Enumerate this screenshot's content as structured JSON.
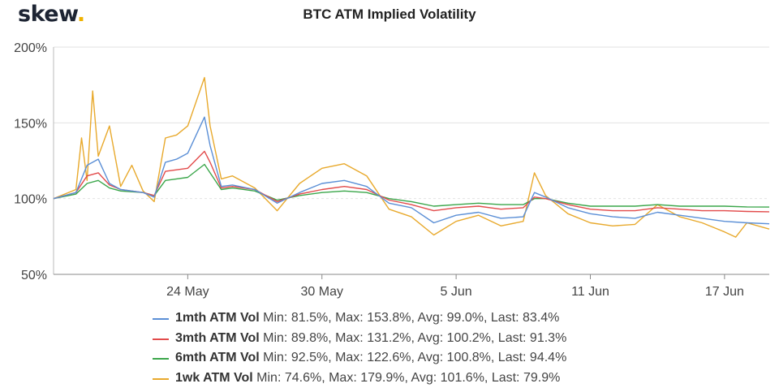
{
  "brand": {
    "name": "skew",
    "dot": "."
  },
  "chart_data": {
    "type": "line",
    "title": "BTC ATM Implied Volatility",
    "xlabel": "",
    "ylabel": "",
    "ylim": [
      50,
      200
    ],
    "yticks": [
      50,
      100,
      150,
      200
    ],
    "ytick_labels": [
      "50%",
      "100%",
      "150%",
      "200%"
    ],
    "xlim": [
      "2020-05-18",
      "2020-06-19"
    ],
    "xticks": [
      "2020-05-24",
      "2020-05-30",
      "2020-06-05",
      "2020-06-11",
      "2020-06-17"
    ],
    "xtick_labels": [
      "24 May",
      "30 May",
      "5 Jun",
      "11 Jun",
      "17 Jun"
    ],
    "grid": true,
    "legend_placement": "bottom",
    "series": [
      {
        "name": "1mth ATM Vol",
        "stats": "Min: 81.5%, Max: 153.8%, Avg: 99.0%, Last: 83.4%",
        "color": "#5b8fd6",
        "points": [
          [
            "2020-05-18",
            100
          ],
          [
            "2020-05-19",
            104
          ],
          [
            "2020-05-19T12",
            122
          ],
          [
            "2020-05-20",
            126
          ],
          [
            "2020-05-20T12",
            110
          ],
          [
            "2020-05-21",
            106
          ],
          [
            "2020-05-22",
            104
          ],
          [
            "2020-05-22T12",
            101
          ],
          [
            "2020-05-23",
            124
          ],
          [
            "2020-05-23T12",
            126
          ],
          [
            "2020-05-24",
            130
          ],
          [
            "2020-05-24T18",
            153.8
          ],
          [
            "2020-05-25",
            135
          ],
          [
            "2020-05-25T12",
            108
          ],
          [
            "2020-05-26",
            109
          ],
          [
            "2020-05-27",
            106
          ],
          [
            "2020-05-28",
            97
          ],
          [
            "2020-05-29",
            104
          ],
          [
            "2020-05-30",
            110
          ],
          [
            "2020-05-31",
            112
          ],
          [
            "2020-06-01",
            108
          ],
          [
            "2020-06-02",
            97
          ],
          [
            "2020-06-03",
            94
          ],
          [
            "2020-06-04",
            84
          ],
          [
            "2020-06-05",
            89
          ],
          [
            "2020-06-06",
            91
          ],
          [
            "2020-06-07",
            87
          ],
          [
            "2020-06-08",
            88
          ],
          [
            "2020-06-08T12",
            104
          ],
          [
            "2020-06-09",
            101
          ],
          [
            "2020-06-10",
            94
          ],
          [
            "2020-06-11",
            90
          ],
          [
            "2020-06-12",
            88
          ],
          [
            "2020-06-13",
            87
          ],
          [
            "2020-06-14",
            91
          ],
          [
            "2020-06-15",
            89
          ],
          [
            "2020-06-16",
            87
          ],
          [
            "2020-06-17",
            85
          ],
          [
            "2020-06-18",
            84
          ],
          [
            "2020-06-19",
            83.4
          ]
        ]
      },
      {
        "name": "3mth ATM Vol",
        "stats": "Min: 89.8%, Max: 131.2%, Avg: 100.2%, Last: 91.3%",
        "color": "#e24b4b",
        "points": [
          [
            "2020-05-18",
            100
          ],
          [
            "2020-05-19",
            104
          ],
          [
            "2020-05-19T12",
            115
          ],
          [
            "2020-05-20",
            117
          ],
          [
            "2020-05-20T12",
            109
          ],
          [
            "2020-05-21",
            106
          ],
          [
            "2020-05-22",
            104
          ],
          [
            "2020-05-22T12",
            102
          ],
          [
            "2020-05-23",
            118
          ],
          [
            "2020-05-23T12",
            119
          ],
          [
            "2020-05-24",
            120
          ],
          [
            "2020-05-24T18",
            131.2
          ],
          [
            "2020-05-25",
            124
          ],
          [
            "2020-05-25T12",
            107
          ],
          [
            "2020-05-26",
            108
          ],
          [
            "2020-05-27",
            106
          ],
          [
            "2020-05-28",
            98
          ],
          [
            "2020-05-29",
            103
          ],
          [
            "2020-05-30",
            106
          ],
          [
            "2020-05-31",
            108
          ],
          [
            "2020-06-01",
            106
          ],
          [
            "2020-06-02",
            99
          ],
          [
            "2020-06-03",
            96
          ],
          [
            "2020-06-04",
            92
          ],
          [
            "2020-06-05",
            94
          ],
          [
            "2020-06-06",
            95
          ],
          [
            "2020-06-07",
            93
          ],
          [
            "2020-06-08",
            94
          ],
          [
            "2020-06-08T12",
            101
          ],
          [
            "2020-06-09",
            100
          ],
          [
            "2020-06-10",
            96
          ],
          [
            "2020-06-11",
            93
          ],
          [
            "2020-06-12",
            92
          ],
          [
            "2020-06-13",
            92
          ],
          [
            "2020-06-14",
            94
          ],
          [
            "2020-06-15",
            93
          ],
          [
            "2020-06-16",
            92
          ],
          [
            "2020-06-17",
            92
          ],
          [
            "2020-06-18",
            91.5
          ],
          [
            "2020-06-19",
            91.3
          ]
        ]
      },
      {
        "name": "6mth ATM Vol",
        "stats": "Min: 92.5%, Max: 122.6%, Avg: 100.8%, Last: 94.4%",
        "color": "#3aa64a",
        "points": [
          [
            "2020-05-18",
            100
          ],
          [
            "2020-05-19",
            103
          ],
          [
            "2020-05-19T12",
            110
          ],
          [
            "2020-05-20",
            112
          ],
          [
            "2020-05-20T12",
            107
          ],
          [
            "2020-05-21",
            105
          ],
          [
            "2020-05-22",
            104
          ],
          [
            "2020-05-22T12",
            102
          ],
          [
            "2020-05-23",
            112
          ],
          [
            "2020-05-23T12",
            113
          ],
          [
            "2020-05-24",
            114
          ],
          [
            "2020-05-24T18",
            122.6
          ],
          [
            "2020-05-25",
            117
          ],
          [
            "2020-05-25T12",
            106
          ],
          [
            "2020-05-26",
            107
          ],
          [
            "2020-05-27",
            105
          ],
          [
            "2020-05-28",
            99
          ],
          [
            "2020-05-29",
            102
          ],
          [
            "2020-05-30",
            104
          ],
          [
            "2020-05-31",
            105
          ],
          [
            "2020-06-01",
            104
          ],
          [
            "2020-06-02",
            100
          ],
          [
            "2020-06-03",
            98
          ],
          [
            "2020-06-04",
            95
          ],
          [
            "2020-06-05",
            96
          ],
          [
            "2020-06-06",
            97
          ],
          [
            "2020-06-07",
            96
          ],
          [
            "2020-06-08",
            96
          ],
          [
            "2020-06-08T12",
            100
          ],
          [
            "2020-06-09",
            100
          ],
          [
            "2020-06-10",
            97
          ],
          [
            "2020-06-11",
            95
          ],
          [
            "2020-06-12",
            95
          ],
          [
            "2020-06-13",
            95
          ],
          [
            "2020-06-14",
            96
          ],
          [
            "2020-06-15",
            95
          ],
          [
            "2020-06-16",
            95
          ],
          [
            "2020-06-17",
            95
          ],
          [
            "2020-06-18",
            94.5
          ],
          [
            "2020-06-19",
            94.4
          ]
        ]
      },
      {
        "name": "1wk ATM Vol",
        "stats": "Min: 74.6%, Max: 179.9%, Avg: 101.6%, Last: 79.9%",
        "color": "#e8a92c",
        "points": [
          [
            "2020-05-18",
            100
          ],
          [
            "2020-05-19",
            106
          ],
          [
            "2020-05-19T06",
            140
          ],
          [
            "2020-05-19T12",
            112
          ],
          [
            "2020-05-19T18",
            171
          ],
          [
            "2020-05-20",
            128
          ],
          [
            "2020-05-20T12",
            148
          ],
          [
            "2020-05-21",
            108
          ],
          [
            "2020-05-21T12",
            122
          ],
          [
            "2020-05-22",
            105
          ],
          [
            "2020-05-22T12",
            98
          ],
          [
            "2020-05-23",
            140
          ],
          [
            "2020-05-23T12",
            142
          ],
          [
            "2020-05-24",
            148
          ],
          [
            "2020-05-24T18",
            179.9
          ],
          [
            "2020-05-25",
            148
          ],
          [
            "2020-05-25T12",
            113
          ],
          [
            "2020-05-26",
            115
          ],
          [
            "2020-05-27",
            107
          ],
          [
            "2020-05-28",
            92
          ],
          [
            "2020-05-29",
            110
          ],
          [
            "2020-05-30",
            120
          ],
          [
            "2020-05-31",
            123
          ],
          [
            "2020-06-01",
            115
          ],
          [
            "2020-06-02",
            93
          ],
          [
            "2020-06-03",
            88
          ],
          [
            "2020-06-04",
            76
          ],
          [
            "2020-06-05",
            85
          ],
          [
            "2020-06-06",
            89
          ],
          [
            "2020-06-07",
            82
          ],
          [
            "2020-06-08",
            85
          ],
          [
            "2020-06-08T12",
            117
          ],
          [
            "2020-06-09",
            102
          ],
          [
            "2020-06-10",
            90
          ],
          [
            "2020-06-11",
            84
          ],
          [
            "2020-06-12",
            82
          ],
          [
            "2020-06-13",
            83
          ],
          [
            "2020-06-14",
            96
          ],
          [
            "2020-06-15",
            88
          ],
          [
            "2020-06-16",
            84
          ],
          [
            "2020-06-17",
            78
          ],
          [
            "2020-06-17T12",
            74.6
          ],
          [
            "2020-06-18",
            84
          ],
          [
            "2020-06-19",
            79.9
          ]
        ]
      }
    ]
  }
}
